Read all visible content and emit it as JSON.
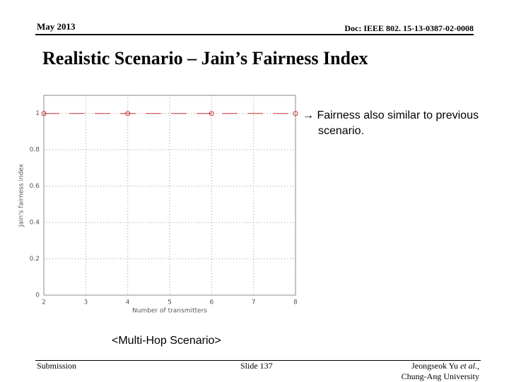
{
  "header": {
    "date": "May 2013",
    "doc": "Doc: IEEE 802. 15-13-0387-02-0008"
  },
  "title": "Realistic Scenario – Jain’s Fairness Index",
  "bullet": "Fairness also similar to previous scenario.",
  "chart_data": {
    "type": "line",
    "x": [
      2,
      4,
      6,
      8
    ],
    "series": [
      {
        "color": "#cc3333",
        "values": [
          1,
          1,
          1,
          1
        ]
      }
    ],
    "xlim": [
      2,
      8
    ],
    "xticks": [
      2,
      3,
      4,
      5,
      6,
      7,
      8
    ],
    "ylim": [
      0,
      1.1
    ],
    "yticks": [
      0,
      0.2,
      0.4,
      0.6,
      0.8,
      1
    ],
    "xlabel": "Number of transmitters",
    "ylabel": "Jain's fairness index",
    "grid": true
  },
  "caption": "<Multi-Hop Scenario>",
  "footer": {
    "left": "Submission",
    "center": "Slide 137",
    "author": "Jeongseok Yu",
    "etal": "et al.,",
    "affiliation": "Chung-Ang University"
  }
}
